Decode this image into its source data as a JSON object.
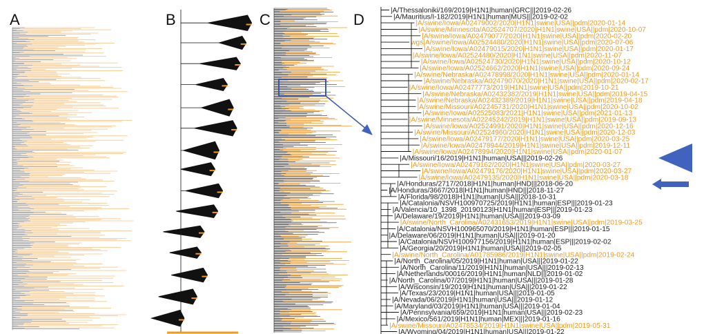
{
  "panels": {
    "a": "A",
    "b": "B",
    "c": "C",
    "d": "D"
  },
  "colors": {
    "human": "#222222",
    "swine": "#f39a1e",
    "swine_light": "#fbd3a2",
    "tree": "#111111",
    "callout": "#3a56a6",
    "marker": "#3f63bf"
  },
  "leaves": [
    {
      "label": "|A/Thessaloniki/169/2019|H1N1|human|GRC|||2019-02-26",
      "host": "human"
    },
    {
      "label": "|A/Mauritius/I-182/2019|H1N1|human|MUS|||2019-02-02",
      "host": "human"
    },
    {
      "label": "|A/swine/Iowa/A02479002/2020|H1N1|swine|USA||pdm|2020-01-14",
      "host": "swine"
    },
    {
      "label": "|A/swine/Minnesota/A02524707/2020|H1N1|swine|USA||pdm|2020-10-07",
      "host": "swine"
    },
    {
      "label": "|A/swine/Iowa/A02479077/2020|H1N1|swine|USA||pdm|2020-02-20",
      "host": "swine"
    },
    {
      "label": "wgs|A/swine/Iowa/A02524480/2020|H1N1|swine|USA||pdm|2020-07-06",
      "host": "swine"
    },
    {
      "label": "|A/swine/Iowa/A02479015/2020|H1N1|swine|USA||pdm|2020-01-17",
      "host": "swine"
    },
    {
      "label": "|A/swine/Iowa/A02524480/2020|H1N1|swine|USA||pdm|2020-11-07",
      "host": "swine"
    },
    {
      "label": "|A/swine/Iowa/A02524730/2020|H1N1|swine|USA||pdm|2020-10-12",
      "host": "swine"
    },
    {
      "label": "|A/swine/Iowa/A02524662/2020|H1N1|swine|USA||pdm|2020-09-24",
      "host": "swine"
    },
    {
      "label": "|A/swine/Nebraska/A02478998/2020|H1N1|swine|USA||pdm|2020-01-14",
      "host": "swine"
    },
    {
      "label": "|A/swine/Nebraska/A02479070/2020|H1N1|swine|USA||pdm|2020-02-17",
      "host": "swine"
    },
    {
      "label": "|A/swine/Iowa/A02477773/2019|H1N1|swine|USA||pdm|2019-10-21",
      "host": "swine"
    },
    {
      "label": "|A/swine/Nebraska/A02432382/2019|H1N1|swine|USA||pdm|2019-04-15",
      "host": "swine"
    },
    {
      "label": "|A/swine/Nebraska/A02432389/2019|H1N1|swine|USA||pdm|2019-04-18",
      "host": "swine"
    },
    {
      "label": "|A/swine/Missouri/A02245731/2020|H1N1|swine|USA||pdm|2020-10-02",
      "host": "swine"
    },
    {
      "label": "|A/swine/Iowa/A02525083/2021|H1N1|swine|USA||pdm|2021-01-13",
      "host": "swine"
    },
    {
      "label": "|A/swine/Minnesota/A02245242/2019|H1N1|swine|USA||pdm|2019-09-13",
      "host": "swine"
    },
    {
      "label": "|A/swine/Iowa/A02524991/2020|H1N1|swine|USA||pdm|2020-12-16",
      "host": "swine"
    },
    {
      "label": "|A/swine/Missouri/A02524960/2020|H1N1|swine|USA||pdm|2020-12-03",
      "host": "swine"
    },
    {
      "label": "|A/swine/Iowa/A02479177/2020|H1N1|swine|USA||pdm|2020-03-25",
      "host": "swine"
    },
    {
      "label": "|A/swine/Iowa/A02478944/2019|H1N1|swine|USA||pdm|2019-12-11",
      "host": "swine"
    },
    {
      "label": "|A/swine/Iowa/A02478994/2020|H1N1|swine|USA||pdm|2020-01-07",
      "host": "swine"
    },
    {
      "label": "|A/Missouri/16/2019|H1N1|human|USA|||2019-02-26",
      "host": "human"
    },
    {
      "label": "|A/swine/Iowa/A02479162/2020|H1N1|swine|USA||pdm|2020-03-27",
      "host": "swine"
    },
    {
      "label": "|A/swine/Iowa/A02479176/2020|H1N1|swine|USA||pdm|2020-03-27",
      "host": "swine"
    },
    {
      "label": "|A/swine/Iowa/A02479135/2020|H1N1|swine|USA||pdm|2020-03-18",
      "host": "swine"
    },
    {
      "label": "|A/Honduras/2717/2018|H1N1|human|HND|||2018-06-20",
      "host": "human"
    },
    {
      "label": "|A/Honduras/3667/2018|H1N1|human|HND|||2018-11-27",
      "host": "human"
    },
    {
      "label": "|A/Florida/98/2018|H1N1|human|USA|||2018-10-31",
      "host": "human"
    },
    {
      "label": "|A/Catalonia/NSVH100970725/2019|H1N1|human|ESP|||2019-01-23",
      "host": "human"
    },
    {
      "label": "|A/Valencia/10_1398_20190123|H1N1|human|ESP|||2019-01-23",
      "host": "human"
    },
    {
      "label": "|A/Delaware/19/2019|H1N1|human|USA|||2019-03-09",
      "host": "human"
    },
    {
      "label": "|A/swine/North_Carolina/A02431653/2019|H1N1|swine|USA||pdm|2019-03-25",
      "host": "swine"
    },
    {
      "label": "|A/Catalonia/NSVH100965070/2019|H1N1|human|ESP|||2019-01-15",
      "host": "human"
    },
    {
      "label": "|A/Delaware/06/2019|H1N1|human|USA|||2019-01-20",
      "host": "human"
    },
    {
      "label": "|A/Catalonia/NSVH100977156/2019|H1N1|human|ESP|||2019-02-02",
      "host": "human"
    },
    {
      "label": "|A/Georgia/20/2019|H1N1|human|USA|||2019-02-05",
      "host": "human"
    },
    {
      "label": "|A/swine/North_Carolina/A01785986/2019|H1N1|swine|USA||pdm|2019-02-24",
      "host": "swine"
    },
    {
      "label": "|A/North_Carolina/05/2019|H1N1|human|USA|||2019-01-22",
      "host": "human"
    },
    {
      "label": "|A/North_Carolina/11/2019|H1N1|human|USA|||2019-02-13",
      "host": "human"
    },
    {
      "label": "|A/Netherlands/00016/2019|H1N1|human|NLD|||2019-01-02",
      "host": "human"
    },
    {
      "label": "|A/North_Carolina/07/2019|H1N1|human|USA|||2019-01-28",
      "host": "human"
    },
    {
      "label": "|A/Wisconsin/19/2019|H1N1|human|USA|||2019-01-22",
      "host": "human"
    },
    {
      "label": "|A/Texas/23/2019|H1N1|human|USA|||2019-01-05",
      "host": "human"
    },
    {
      "label": "|A/Nevada/06/2019|H1N1|human|USA|||2019-01-12",
      "host": "human"
    },
    {
      "label": "|A/Maryland/03/2019|H1N1|human|USA|||2019-01-04",
      "host": "human"
    },
    {
      "label": "|A/Pennsylvania/659/2019|H1N1|human|USA|||2019-02-23",
      "host": "human"
    },
    {
      "label": "|A/Mexico/561/2019|H1N1|human|MEX|||2019-01-16",
      "host": "human"
    },
    {
      "label": "|A/swine/Missouri/A02478534/2019|H1N1|swine|USA||pdm|2019-05-31",
      "host": "swine"
    },
    {
      "label": "|A/Wyoming/04/2019|H1N1|human|USA|||2019-01-22",
      "host": "human"
    }
  ]
}
